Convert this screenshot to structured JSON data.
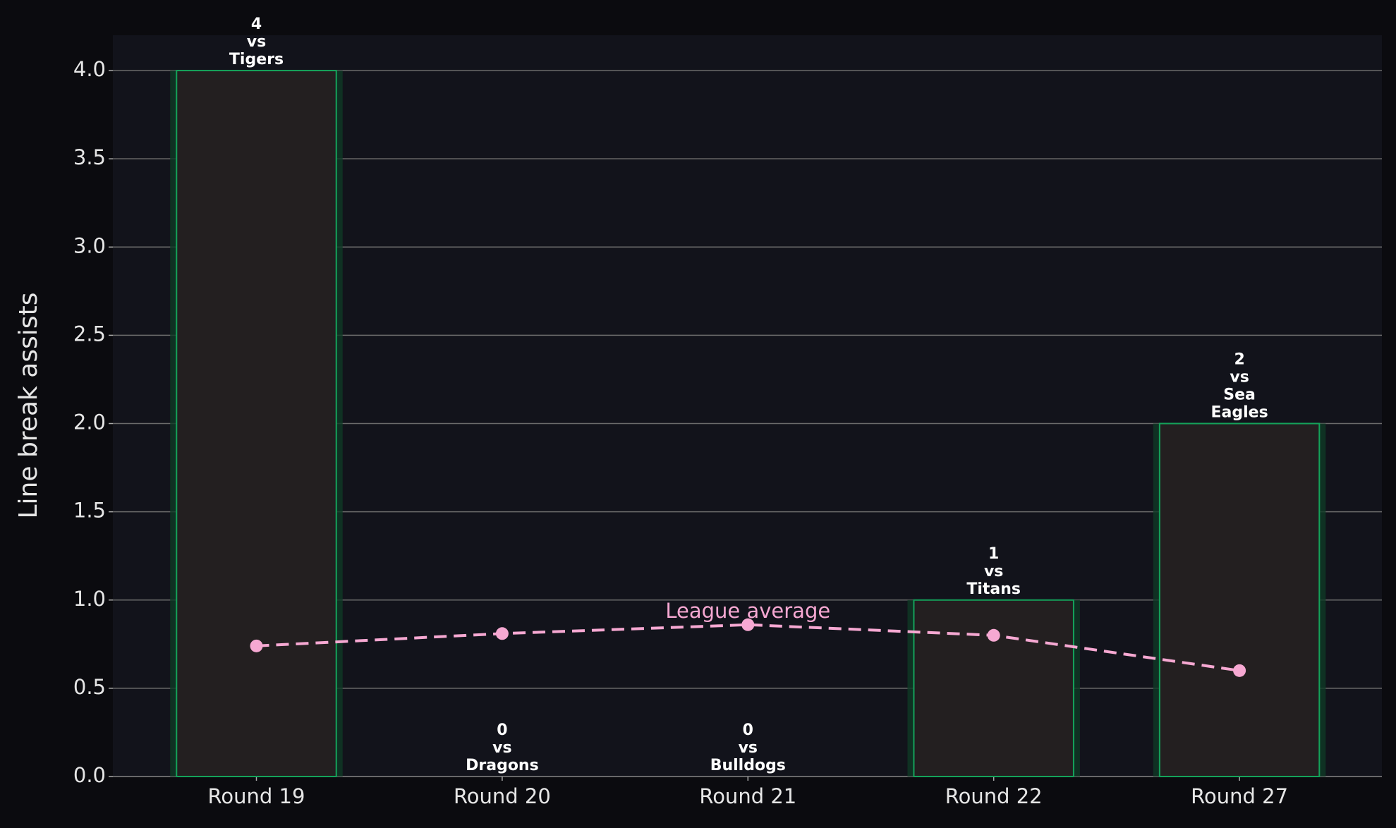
{
  "chart_data": {
    "type": "bar",
    "ylabel": "Line break assists",
    "categories": [
      "Round 19",
      "Round 20",
      "Round 21",
      "Round 22",
      "Round 27"
    ],
    "values": [
      4,
      0,
      0,
      1,
      2
    ],
    "label_connector": "vs",
    "opponents": [
      "Tigers",
      "Dragons",
      "Bulldogs",
      "Titans",
      "Sea Eagles"
    ],
    "color": "#231f20",
    "edge_color": "#14a25a",
    "line": {
      "label": "League average",
      "values": [
        0.74,
        0.81,
        0.86,
        0.8,
        0.6
      ],
      "color": "#f6a8d2"
    },
    "ylim": [
      0,
      4.2
    ],
    "yticks": [
      {
        "value": 0,
        "label": "0.0"
      },
      0.5,
      {
        "value": 1,
        "label": "1.0"
      },
      1.5,
      {
        "value": 2,
        "label": "2.0"
      },
      2.5,
      {
        "value": 3,
        "label": "3.0"
      },
      3.5,
      {
        "value": 4,
        "label": "4.0"
      }
    ],
    "grid": true
  }
}
